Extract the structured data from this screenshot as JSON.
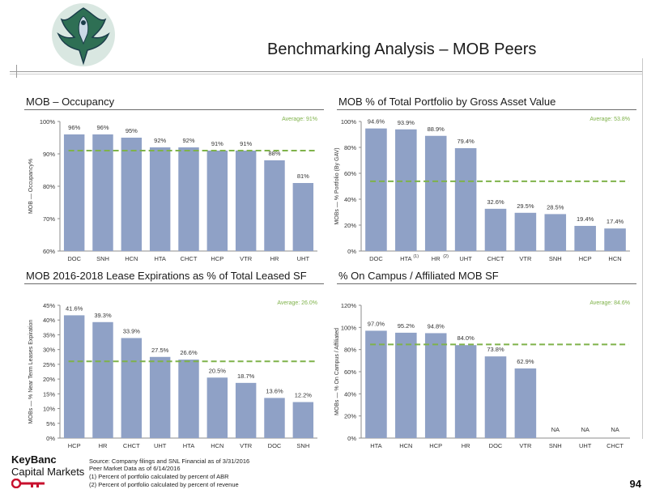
{
  "page": {
    "title": "Benchmarking Analysis – MOB Peers",
    "page_number": "94",
    "accent_color": "#8FA1C6",
    "avg_line_color": "#7FB24A"
  },
  "logo": {
    "brand_line1": "KeyBanc",
    "brand_line2": "Capital Markets"
  },
  "footer": {
    "lines": [
      "Source: Company filings and SNL Financial as of 3/31/2016",
      "Peer Market Data as of 6/14/2016",
      "(1)  Percent of portfolio calculated by percent of ABR",
      "(2)  Percent of portfolio calculated by percent of revenue"
    ]
  },
  "chart_data": [
    {
      "id": "occupancy",
      "type": "bar",
      "title": "MOB – Occupancy",
      "ylabel": "MOB — Occupancy%",
      "ylim": [
        60,
        100
      ],
      "yticks": [
        60,
        70,
        80,
        90,
        100
      ],
      "tick_suffix": "%",
      "average": 91,
      "average_label": "Average: 91%",
      "categories": [
        "DOC",
        "SNH",
        "HCN",
        "HTA",
        "CHCT",
        "HCP",
        "VTR",
        "HR",
        "UHT"
      ],
      "values": [
        96,
        96,
        95,
        92,
        92,
        91,
        91,
        88,
        81
      ],
      "value_labels": [
        "96%",
        "96%",
        "95%",
        "92%",
        "92%",
        "91%",
        "91%",
        "88%",
        "81%"
      ]
    },
    {
      "id": "portfolio",
      "type": "bar",
      "title": "MOB % of Total Portfolio by Gross Asset Value",
      "ylabel": "MOBs — % Portfolio (By GAV)",
      "ylim": [
        0,
        100
      ],
      "yticks": [
        0,
        20,
        40,
        60,
        80,
        100
      ],
      "tick_suffix": "%",
      "average": 53.8,
      "average_label": "Average: 53.8%",
      "categories": [
        "DOC",
        "HTA",
        "HR",
        "UHT",
        "CHCT",
        "VTR",
        "SNH",
        "HCP",
        "HCN"
      ],
      "category_notes": [
        "",
        "(1)",
        "(2)",
        "",
        "",
        "",
        "",
        "",
        ""
      ],
      "values": [
        94.6,
        93.9,
        88.9,
        79.4,
        32.6,
        29.5,
        28.5,
        19.4,
        17.4
      ],
      "value_labels": [
        "94.6%",
        "93.9%",
        "88.9%",
        "79.4%",
        "32.6%",
        "29.5%",
        "28.5%",
        "19.4%",
        "17.4%"
      ]
    },
    {
      "id": "lease",
      "type": "bar",
      "title": "MOB 2016-2018 Lease Expirations as % of Total Leased SF",
      "ylabel": "MOBs — % Near Term Leases Expiration",
      "ylim": [
        0,
        45
      ],
      "yticks": [
        0,
        5,
        10,
        15,
        20,
        25,
        30,
        35,
        40,
        45
      ],
      "tick_suffix": "%",
      "average": 26.0,
      "average_label": "Average: 26.0%",
      "categories": [
        "HCP",
        "HR",
        "CHCT",
        "UHT",
        "HTA",
        "HCN",
        "VTR",
        "DOC",
        "SNH"
      ],
      "values": [
        41.6,
        39.3,
        33.9,
        27.5,
        26.6,
        20.5,
        18.7,
        13.6,
        12.2
      ],
      "value_labels": [
        "41.6%",
        "39.3%",
        "33.9%",
        "27.5%",
        "26.6%",
        "20.5%",
        "18.7%",
        "13.6%",
        "12.2%"
      ]
    },
    {
      "id": "campus",
      "type": "bar",
      "title": "% On Campus / Affiliated MOB SF",
      "ylabel": "MOBs — % On Campus / Affiliated",
      "ylim": [
        0,
        120
      ],
      "yticks": [
        0,
        20,
        40,
        60,
        80,
        100,
        120
      ],
      "tick_suffix": "%",
      "average": 84.6,
      "average_label": "Average: 84.6%",
      "categories": [
        "HTA",
        "HCN",
        "HCP",
        "HR",
        "DOC",
        "VTR",
        "SNH",
        "UHT",
        "CHCT"
      ],
      "values": [
        97.0,
        95.2,
        94.8,
        84.0,
        73.8,
        62.9,
        null,
        null,
        null
      ],
      "value_labels": [
        "97.0%",
        "95.2%",
        "94.8%",
        "84.0%",
        "73.8%",
        "62.9%",
        "NA",
        "NA",
        "NA"
      ]
    }
  ]
}
